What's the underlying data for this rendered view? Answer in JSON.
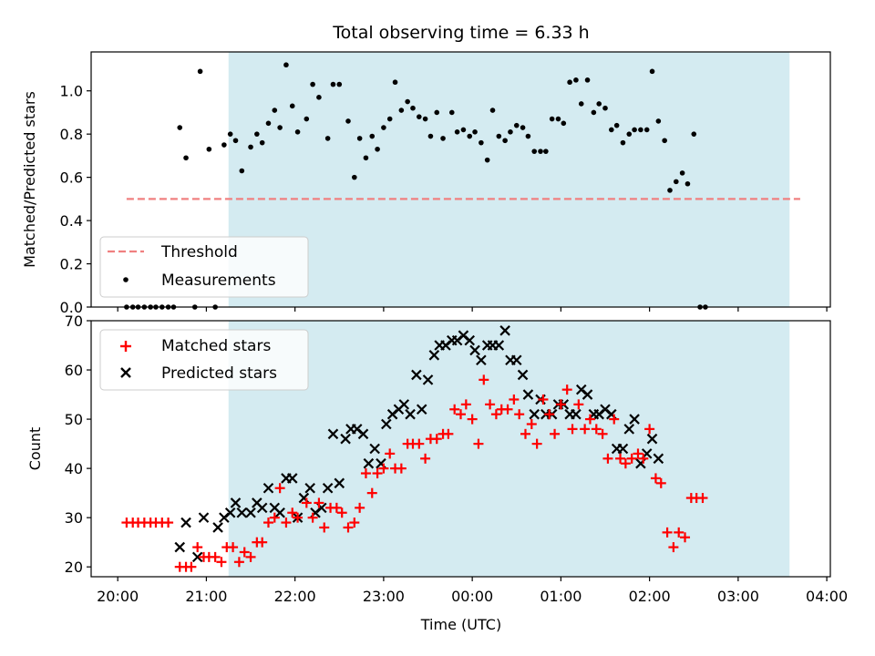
{
  "figure": {
    "title": "Total observing time = 6.33 h",
    "xlabel": "Time (UTC)",
    "xtick_labels": [
      "20:00",
      "21:00",
      "22:00",
      "23:00",
      "00:00",
      "01:00",
      "02:00",
      "03:00",
      "04:00"
    ],
    "shaded_window_hours": [
      1.25,
      7.58
    ],
    "shade_color": "#d4ebf1"
  },
  "chart_data": [
    {
      "type": "scatter",
      "ylabel": "Matched/Predicted stars",
      "x_unit": "hours since 20:00 UTC",
      "xlim": [
        -0.3,
        8.04
      ],
      "ylim": [
        0.0,
        1.18
      ],
      "yticks": [
        "0.0",
        "0.2",
        "0.4",
        "0.6",
        "0.8",
        "1.0"
      ],
      "grid": false,
      "legend_position": "lower-left",
      "threshold": {
        "name": "Threshold",
        "value": 0.5,
        "x_range": [
          0.1,
          7.7
        ],
        "color": "#f08080"
      },
      "series": [
        {
          "name": "Measurements",
          "color": "#000000",
          "points": [
            [
              0.1,
              0.0
            ],
            [
              0.17,
              0.0
            ],
            [
              0.23,
              0.0
            ],
            [
              0.3,
              0.0
            ],
            [
              0.37,
              0.0
            ],
            [
              0.43,
              0.0
            ],
            [
              0.5,
              0.0
            ],
            [
              0.57,
              0.0
            ],
            [
              0.63,
              0.0
            ],
            [
              0.7,
              0.83
            ],
            [
              0.77,
              0.69
            ],
            [
              0.87,
              0.0
            ],
            [
              0.93,
              1.09
            ],
            [
              1.03,
              0.73
            ],
            [
              1.1,
              0.0
            ],
            [
              1.2,
              0.75
            ],
            [
              1.27,
              0.8
            ],
            [
              1.33,
              0.77
            ],
            [
              1.4,
              0.63
            ],
            [
              1.5,
              0.74
            ],
            [
              1.57,
              0.8
            ],
            [
              1.63,
              0.76
            ],
            [
              1.7,
              0.85
            ],
            [
              1.77,
              0.91
            ],
            [
              1.83,
              0.83
            ],
            [
              1.9,
              1.12
            ],
            [
              1.97,
              0.93
            ],
            [
              2.03,
              0.81
            ],
            [
              2.13,
              0.87
            ],
            [
              2.2,
              1.03
            ],
            [
              2.27,
              0.97
            ],
            [
              2.37,
              0.78
            ],
            [
              2.43,
              1.03
            ],
            [
              2.5,
              1.03
            ],
            [
              2.6,
              0.86
            ],
            [
              2.67,
              0.6
            ],
            [
              2.73,
              0.78
            ],
            [
              2.8,
              0.69
            ],
            [
              2.87,
              0.79
            ],
            [
              2.93,
              0.73
            ],
            [
              3.0,
              0.83
            ],
            [
              3.07,
              0.87
            ],
            [
              3.13,
              1.04
            ],
            [
              3.2,
              0.91
            ],
            [
              3.27,
              0.95
            ],
            [
              3.33,
              0.92
            ],
            [
              3.4,
              0.88
            ],
            [
              3.47,
              0.87
            ],
            [
              3.53,
              0.79
            ],
            [
              3.6,
              0.9
            ],
            [
              3.67,
              0.78
            ],
            [
              3.77,
              0.9
            ],
            [
              3.83,
              0.81
            ],
            [
              3.9,
              0.82
            ],
            [
              3.97,
              0.79
            ],
            [
              4.03,
              0.81
            ],
            [
              4.1,
              0.76
            ],
            [
              4.17,
              0.68
            ],
            [
              4.23,
              0.91
            ],
            [
              4.3,
              0.79
            ],
            [
              4.37,
              0.77
            ],
            [
              4.43,
              0.81
            ],
            [
              4.5,
              0.84
            ],
            [
              4.57,
              0.83
            ],
            [
              4.63,
              0.79
            ],
            [
              4.7,
              0.72
            ],
            [
              4.77,
              0.72
            ],
            [
              4.83,
              0.72
            ],
            [
              4.9,
              0.87
            ],
            [
              4.97,
              0.87
            ],
            [
              5.03,
              0.85
            ],
            [
              5.1,
              1.04
            ],
            [
              5.17,
              1.05
            ],
            [
              5.23,
              0.94
            ],
            [
              5.3,
              1.05
            ],
            [
              5.37,
              0.9
            ],
            [
              5.43,
              0.94
            ],
            [
              5.5,
              0.92
            ],
            [
              5.57,
              0.82
            ],
            [
              5.63,
              0.84
            ],
            [
              5.7,
              0.76
            ],
            [
              5.77,
              0.8
            ],
            [
              5.83,
              0.82
            ],
            [
              5.9,
              0.82
            ],
            [
              5.97,
              0.82
            ],
            [
              6.03,
              1.09
            ],
            [
              6.1,
              0.86
            ],
            [
              6.17,
              0.77
            ],
            [
              6.23,
              0.54
            ],
            [
              6.3,
              0.58
            ],
            [
              6.37,
              0.62
            ],
            [
              6.43,
              0.57
            ],
            [
              6.5,
              0.8
            ],
            [
              6.57,
              0.0
            ],
            [
              6.63,
              0.0
            ]
          ]
        }
      ]
    },
    {
      "type": "scatter",
      "ylabel": "Count",
      "x_unit": "hours since 20:00 UTC",
      "xlim": [
        -0.3,
        8.04
      ],
      "ylim": [
        18,
        70
      ],
      "yticks": [
        "20",
        "30",
        "40",
        "50",
        "60",
        "70"
      ],
      "grid": false,
      "legend_position": "upper-left",
      "series": [
        {
          "name": "Matched stars",
          "marker": "plus",
          "color": "#ff0000",
          "points": [
            [
              0.1,
              29
            ],
            [
              0.17,
              29
            ],
            [
              0.23,
              29
            ],
            [
              0.3,
              29
            ],
            [
              0.37,
              29
            ],
            [
              0.43,
              29
            ],
            [
              0.5,
              29
            ],
            [
              0.57,
              29
            ],
            [
              0.7,
              20
            ],
            [
              0.77,
              20
            ],
            [
              0.83,
              20
            ],
            [
              0.9,
              24
            ],
            [
              0.97,
              22
            ],
            [
              1.03,
              22
            ],
            [
              1.1,
              22
            ],
            [
              1.17,
              21
            ],
            [
              1.23,
              24
            ],
            [
              1.3,
              24
            ],
            [
              1.37,
              21
            ],
            [
              1.43,
              23
            ],
            [
              1.5,
              22
            ],
            [
              1.57,
              25
            ],
            [
              1.63,
              25
            ],
            [
              1.7,
              29
            ],
            [
              1.77,
              30
            ],
            [
              1.83,
              36
            ],
            [
              1.9,
              29
            ],
            [
              1.97,
              31
            ],
            [
              2.03,
              30
            ],
            [
              2.13,
              33
            ],
            [
              2.2,
              30
            ],
            [
              2.27,
              33
            ],
            [
              2.33,
              28
            ],
            [
              2.4,
              32
            ],
            [
              2.47,
              32
            ],
            [
              2.53,
              31
            ],
            [
              2.6,
              28
            ],
            [
              2.67,
              29
            ],
            [
              2.73,
              32
            ],
            [
              2.8,
              39
            ],
            [
              2.87,
              35
            ],
            [
              2.93,
              39
            ],
            [
              3.0,
              40
            ],
            [
              3.07,
              43
            ],
            [
              3.13,
              40
            ],
            [
              3.2,
              40
            ],
            [
              3.27,
              45
            ],
            [
              3.33,
              45
            ],
            [
              3.4,
              45
            ],
            [
              3.47,
              42
            ],
            [
              3.53,
              46
            ],
            [
              3.6,
              46
            ],
            [
              3.67,
              47
            ],
            [
              3.73,
              47
            ],
            [
              3.8,
              52
            ],
            [
              3.87,
              51
            ],
            [
              3.93,
              53
            ],
            [
              4.0,
              50
            ],
            [
              4.07,
              45
            ],
            [
              4.13,
              58
            ],
            [
              4.2,
              53
            ],
            [
              4.27,
              51
            ],
            [
              4.33,
              52
            ],
            [
              4.4,
              52
            ],
            [
              4.47,
              54
            ],
            [
              4.53,
              51
            ],
            [
              4.6,
              47
            ],
            [
              4.67,
              49
            ],
            [
              4.73,
              45
            ],
            [
              4.8,
              54
            ],
            [
              4.87,
              51
            ],
            [
              4.93,
              47
            ],
            [
              5.0,
              53
            ],
            [
              5.07,
              56
            ],
            [
              5.13,
              48
            ],
            [
              5.2,
              53
            ],
            [
              5.27,
              48
            ],
            [
              5.33,
              50
            ],
            [
              5.4,
              48
            ],
            [
              5.47,
              47
            ],
            [
              5.53,
              42
            ],
            [
              5.6,
              50
            ],
            [
              5.67,
              42
            ],
            [
              5.73,
              41
            ],
            [
              5.8,
              42
            ],
            [
              5.87,
              43
            ],
            [
              5.93,
              42
            ],
            [
              6.0,
              48
            ],
            [
              6.07,
              38
            ],
            [
              6.13,
              37
            ],
            [
              6.2,
              27
            ],
            [
              6.27,
              24
            ],
            [
              6.33,
              27
            ],
            [
              6.4,
              26
            ],
            [
              6.47,
              34
            ],
            [
              6.53,
              34
            ],
            [
              6.6,
              34
            ]
          ]
        },
        {
          "name": "Predicted stars",
          "marker": "x",
          "color": "#000000",
          "points": [
            [
              0.7,
              24
            ],
            [
              0.77,
              29
            ],
            [
              0.9,
              22
            ],
            [
              0.97,
              30
            ],
            [
              1.13,
              28
            ],
            [
              1.2,
              30
            ],
            [
              1.27,
              31
            ],
            [
              1.33,
              33
            ],
            [
              1.4,
              31
            ],
            [
              1.5,
              31
            ],
            [
              1.57,
              33
            ],
            [
              1.63,
              32
            ],
            [
              1.7,
              36
            ],
            [
              1.77,
              32
            ],
            [
              1.83,
              31
            ],
            [
              1.9,
              38
            ],
            [
              1.97,
              38
            ],
            [
              2.03,
              30
            ],
            [
              2.1,
              34
            ],
            [
              2.17,
              36
            ],
            [
              2.23,
              31
            ],
            [
              2.3,
              32
            ],
            [
              2.37,
              36
            ],
            [
              2.43,
              47
            ],
            [
              2.5,
              37
            ],
            [
              2.57,
              46
            ],
            [
              2.63,
              48
            ],
            [
              2.7,
              48
            ],
            [
              2.77,
              47
            ],
            [
              2.83,
              41
            ],
            [
              2.9,
              44
            ],
            [
              2.97,
              41
            ],
            [
              3.03,
              49
            ],
            [
              3.1,
              51
            ],
            [
              3.17,
              52
            ],
            [
              3.23,
              53
            ],
            [
              3.3,
              51
            ],
            [
              3.37,
              59
            ],
            [
              3.43,
              52
            ],
            [
              3.5,
              58
            ],
            [
              3.57,
              63
            ],
            [
              3.63,
              65
            ],
            [
              3.7,
              65
            ],
            [
              3.77,
              66
            ],
            [
              3.83,
              66
            ],
            [
              3.9,
              67
            ],
            [
              3.97,
              66
            ],
            [
              4.03,
              64
            ],
            [
              4.1,
              62
            ],
            [
              4.17,
              65
            ],
            [
              4.23,
              65
            ],
            [
              4.3,
              65
            ],
            [
              4.37,
              68
            ],
            [
              4.43,
              62
            ],
            [
              4.5,
              62
            ],
            [
              4.57,
              59
            ],
            [
              4.63,
              55
            ],
            [
              4.7,
              51
            ],
            [
              4.77,
              54
            ],
            [
              4.83,
              51
            ],
            [
              4.9,
              51
            ],
            [
              4.97,
              53
            ],
            [
              5.03,
              53
            ],
            [
              5.1,
              51
            ],
            [
              5.17,
              51
            ],
            [
              5.23,
              56
            ],
            [
              5.3,
              55
            ],
            [
              5.37,
              51
            ],
            [
              5.43,
              51
            ],
            [
              5.5,
              52
            ],
            [
              5.57,
              51
            ],
            [
              5.63,
              44
            ],
            [
              5.7,
              44
            ],
            [
              5.77,
              48
            ],
            [
              5.83,
              50
            ],
            [
              5.9,
              41
            ],
            [
              5.97,
              43
            ],
            [
              6.03,
              46
            ],
            [
              6.1,
              42
            ]
          ]
        }
      ]
    }
  ]
}
